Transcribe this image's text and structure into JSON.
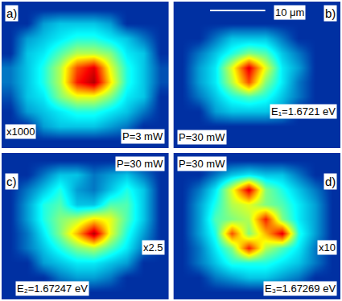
{
  "chart_data": [
    {
      "type": "heatmap",
      "letter": "a)",
      "gain": "x1000",
      "power": "P=3 mW",
      "color": "Jet",
      "tick_labels": false,
      "zlim": [
        0,
        1
      ],
      "z": [
        [
          0.1,
          0.1,
          0.1,
          0.1,
          0.1,
          0.1,
          0.1,
          0.1,
          0.1,
          0.1
        ],
        [
          0.1,
          0.1,
          0.25,
          0.3,
          0.3,
          0.3,
          0.25,
          0.1,
          0.1,
          0.1
        ],
        [
          0.1,
          0.25,
          0.3,
          0.35,
          0.4,
          0.4,
          0.35,
          0.3,
          0.2,
          0.1
        ],
        [
          0.1,
          0.3,
          0.35,
          0.45,
          0.55,
          0.55,
          0.5,
          0.35,
          0.3,
          0.1
        ],
        [
          0.2,
          0.3,
          0.4,
          0.55,
          0.8,
          0.9,
          0.6,
          0.4,
          0.3,
          0.15
        ],
        [
          0.2,
          0.3,
          0.4,
          0.55,
          0.85,
          0.95,
          0.65,
          0.4,
          0.3,
          0.15
        ],
        [
          0.15,
          0.3,
          0.35,
          0.5,
          0.6,
          0.6,
          0.5,
          0.35,
          0.3,
          0.1
        ],
        [
          0.1,
          0.25,
          0.3,
          0.35,
          0.4,
          0.4,
          0.35,
          0.3,
          0.2,
          0.1
        ],
        [
          0.1,
          0.1,
          0.25,
          0.3,
          0.3,
          0.3,
          0.25,
          0.2,
          0.1,
          0.1
        ],
        [
          0.1,
          0.1,
          0.1,
          0.1,
          0.1,
          0.1,
          0.1,
          0.1,
          0.1,
          0.1
        ]
      ]
    },
    {
      "type": "heatmap",
      "letter": "b)",
      "scale_bar": "10 μm",
      "energy": "E₁=1.6721 eV",
      "power": "P=30 mW",
      "color": "Jet",
      "tick_labels": false,
      "zlim": [
        0,
        1
      ],
      "z": [
        [
          0.1,
          0.1,
          0.1,
          0.1,
          0.1,
          0.1,
          0.1,
          0.1,
          0.1,
          0.1
        ],
        [
          0.1,
          0.1,
          0.1,
          0.1,
          0.1,
          0.1,
          0.1,
          0.1,
          0.1,
          0.1
        ],
        [
          0.1,
          0.1,
          0.2,
          0.3,
          0.3,
          0.3,
          0.2,
          0.1,
          0.1,
          0.1
        ],
        [
          0.1,
          0.2,
          0.3,
          0.4,
          0.5,
          0.45,
          0.3,
          0.2,
          0.1,
          0.1
        ],
        [
          0.1,
          0.25,
          0.35,
          0.6,
          0.9,
          0.6,
          0.35,
          0.25,
          0.1,
          0.1
        ],
        [
          0.1,
          0.25,
          0.35,
          0.55,
          0.8,
          0.5,
          0.35,
          0.2,
          0.1,
          0.1
        ],
        [
          0.1,
          0.2,
          0.3,
          0.4,
          0.45,
          0.4,
          0.3,
          0.2,
          0.1,
          0.1
        ],
        [
          0.1,
          0.1,
          0.25,
          0.3,
          0.3,
          0.3,
          0.25,
          0.1,
          0.1,
          0.1
        ],
        [
          0.1,
          0.1,
          0.1,
          0.1,
          0.1,
          0.1,
          0.1,
          0.1,
          0.1,
          0.1
        ],
        [
          0.1,
          0.1,
          0.1,
          0.1,
          0.1,
          0.1,
          0.1,
          0.1,
          0.1,
          0.1
        ]
      ]
    },
    {
      "type": "heatmap",
      "letter": "c)",
      "power": "P=30 mW",
      "gain": "x2.5",
      "energy": "E₂=1.67247 eV",
      "color": "Jet",
      "tick_labels": false,
      "zlim": [
        0,
        1
      ],
      "z": [
        [
          0.1,
          0.1,
          0.1,
          0.1,
          0.1,
          0.1,
          0.1,
          0.1,
          0.1,
          0.1
        ],
        [
          0.1,
          0.1,
          0.2,
          0.3,
          0.3,
          0.2,
          0.25,
          0.3,
          0.2,
          0.1
        ],
        [
          0.1,
          0.2,
          0.3,
          0.4,
          0.25,
          0.2,
          0.3,
          0.4,
          0.3,
          0.1
        ],
        [
          0.1,
          0.25,
          0.4,
          0.45,
          0.3,
          0.3,
          0.45,
          0.45,
          0.3,
          0.1
        ],
        [
          0.1,
          0.25,
          0.4,
          0.5,
          0.55,
          0.65,
          0.6,
          0.45,
          0.3,
          0.1
        ],
        [
          0.1,
          0.2,
          0.35,
          0.5,
          0.7,
          0.95,
          0.6,
          0.4,
          0.25,
          0.1
        ],
        [
          0.1,
          0.2,
          0.3,
          0.4,
          0.5,
          0.55,
          0.45,
          0.35,
          0.2,
          0.1
        ],
        [
          0.1,
          0.1,
          0.25,
          0.3,
          0.35,
          0.35,
          0.3,
          0.25,
          0.1,
          0.1
        ],
        [
          0.1,
          0.1,
          0.1,
          0.2,
          0.25,
          0.25,
          0.2,
          0.1,
          0.1,
          0.1
        ],
        [
          0.1,
          0.1,
          0.1,
          0.1,
          0.1,
          0.1,
          0.1,
          0.1,
          0.1,
          0.1
        ]
      ]
    },
    {
      "type": "heatmap",
      "letter": "d)",
      "power": "P=30 mW",
      "gain": "x10",
      "energy": "E₃=1.67269 eV",
      "color": "Jet",
      "tick_labels": false,
      "zlim": [
        0,
        1
      ],
      "z": [
        [
          0.1,
          0.1,
          0.1,
          0.1,
          0.1,
          0.1,
          0.1,
          0.1,
          0.1,
          0.1
        ],
        [
          0.1,
          0.1,
          0.2,
          0.3,
          0.35,
          0.3,
          0.3,
          0.2,
          0.1,
          0.1
        ],
        [
          0.1,
          0.2,
          0.35,
          0.6,
          0.9,
          0.5,
          0.4,
          0.3,
          0.2,
          0.1
        ],
        [
          0.1,
          0.25,
          0.4,
          0.55,
          0.6,
          0.5,
          0.45,
          0.35,
          0.25,
          0.1
        ],
        [
          0.1,
          0.25,
          0.45,
          0.5,
          0.55,
          0.85,
          0.5,
          0.35,
          0.25,
          0.1
        ],
        [
          0.1,
          0.25,
          0.4,
          0.8,
          0.5,
          0.7,
          0.9,
          0.4,
          0.25,
          0.1
        ],
        [
          0.1,
          0.2,
          0.35,
          0.5,
          0.85,
          0.55,
          0.45,
          0.35,
          0.2,
          0.1
        ],
        [
          0.1,
          0.2,
          0.3,
          0.4,
          0.4,
          0.4,
          0.35,
          0.3,
          0.2,
          0.1
        ],
        [
          0.1,
          0.1,
          0.2,
          0.25,
          0.3,
          0.3,
          0.25,
          0.2,
          0.1,
          0.1
        ],
        [
          0.1,
          0.1,
          0.1,
          0.1,
          0.1,
          0.1,
          0.1,
          0.1,
          0.1,
          0.1
        ]
      ]
    }
  ]
}
